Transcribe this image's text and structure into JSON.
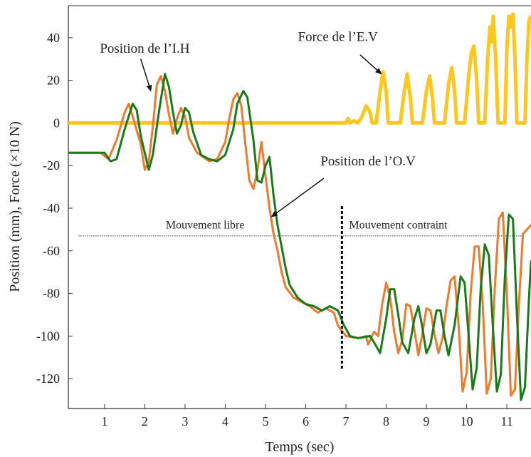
{
  "chart_data": {
    "type": "line",
    "xlabel": "Temps (sec)",
    "ylabel": "Position (mm), Force (×10 N)",
    "xlim": [
      0.1,
      11.6
    ],
    "ylim": [
      -134,
      55
    ],
    "xticks": [
      1,
      2,
      3,
      4,
      5,
      6,
      7,
      8,
      9,
      10,
      11
    ],
    "yticks": [
      40,
      20,
      0,
      -20,
      -40,
      -60,
      -80,
      -100,
      -120
    ],
    "grid": false,
    "series": [
      {
        "key": "ih",
        "color": "#f07a2c",
        "points": [
          [
            0.1,
            -14
          ],
          [
            0.9,
            -14
          ],
          [
            1.1,
            -17
          ],
          [
            1.3,
            -8
          ],
          [
            1.5,
            5
          ],
          [
            1.6,
            9
          ],
          [
            1.7,
            3
          ],
          [
            1.9,
            -10
          ],
          [
            2.0,
            -22
          ],
          [
            2.1,
            -18
          ],
          [
            2.2,
            -2
          ],
          [
            2.3,
            18
          ],
          [
            2.4,
            22
          ],
          [
            2.5,
            15
          ],
          [
            2.6,
            4
          ],
          [
            2.7,
            -5
          ],
          [
            2.8,
            2
          ],
          [
            2.9,
            7
          ],
          [
            3.0,
            3
          ],
          [
            3.1,
            -7
          ],
          [
            3.3,
            -14
          ],
          [
            3.6,
            -18
          ],
          [
            3.8,
            -17
          ],
          [
            4.0,
            -9
          ],
          [
            4.1,
            2
          ],
          [
            4.2,
            11
          ],
          [
            4.3,
            14
          ],
          [
            4.4,
            8
          ],
          [
            4.5,
            -10
          ],
          [
            4.6,
            -27
          ],
          [
            4.7,
            -31
          ],
          [
            4.8,
            -22
          ],
          [
            4.9,
            -9
          ],
          [
            5.0,
            -25
          ],
          [
            5.1,
            -40
          ],
          [
            5.2,
            -52
          ],
          [
            5.3,
            -60
          ],
          [
            5.4,
            -70
          ],
          [
            5.5,
            -77
          ],
          [
            5.7,
            -82
          ],
          [
            5.9,
            -84
          ],
          [
            6.1,
            -86
          ],
          [
            6.3,
            -89
          ],
          [
            6.5,
            -87
          ],
          [
            6.7,
            -89
          ],
          [
            6.8,
            -95
          ],
          [
            7.0,
            -100
          ],
          [
            7.3,
            -101
          ],
          [
            7.5,
            -100
          ],
          [
            7.55,
            -104
          ],
          [
            7.7,
            -98
          ],
          [
            7.8,
            -100
          ],
          [
            7.9,
            -85
          ],
          [
            8.0,
            -75
          ],
          [
            8.1,
            -82
          ],
          [
            8.2,
            -98
          ],
          [
            8.3,
            -108
          ],
          [
            8.4,
            -102
          ],
          [
            8.5,
            -85
          ],
          [
            8.6,
            -86
          ],
          [
            8.7,
            -97
          ],
          [
            8.8,
            -109
          ],
          [
            8.9,
            -99
          ],
          [
            9.0,
            -87
          ],
          [
            9.1,
            -88
          ],
          [
            9.2,
            -99
          ],
          [
            9.3,
            -108
          ],
          [
            9.4,
            -101
          ],
          [
            9.5,
            -86
          ],
          [
            9.6,
            -74
          ],
          [
            9.7,
            -72
          ],
          [
            9.8,
            -95
          ],
          [
            9.9,
            -126
          ],
          [
            10.0,
            -117
          ],
          [
            10.1,
            -80
          ],
          [
            10.2,
            -58
          ],
          [
            10.3,
            -58
          ],
          [
            10.4,
            -85
          ],
          [
            10.5,
            -127
          ],
          [
            10.6,
            -120
          ],
          [
            10.7,
            -78
          ],
          [
            10.8,
            -45
          ],
          [
            10.9,
            -42
          ],
          [
            11.0,
            -80
          ],
          [
            11.1,
            -128
          ],
          [
            11.2,
            -125
          ],
          [
            11.3,
            -85
          ],
          [
            11.4,
            -52
          ],
          [
            11.6,
            -48
          ]
        ]
      },
      {
        "key": "ov",
        "color": "#1a7a1a",
        "points": [
          [
            0.1,
            -14
          ],
          [
            0.9,
            -14
          ],
          [
            1.0,
            -14
          ],
          [
            1.15,
            -18
          ],
          [
            1.3,
            -17
          ],
          [
            1.5,
            -3
          ],
          [
            1.7,
            9
          ],
          [
            1.8,
            6
          ],
          [
            1.9,
            -6
          ],
          [
            2.1,
            -22
          ],
          [
            2.2,
            -15
          ],
          [
            2.35,
            5
          ],
          [
            2.5,
            23
          ],
          [
            2.6,
            17
          ],
          [
            2.7,
            5
          ],
          [
            2.8,
            -5
          ],
          [
            2.9,
            -1
          ],
          [
            3.0,
            7
          ],
          [
            3.1,
            5
          ],
          [
            3.2,
            -4
          ],
          [
            3.4,
            -15
          ],
          [
            3.6,
            -17
          ],
          [
            3.8,
            -18
          ],
          [
            4.0,
            -15
          ],
          [
            4.2,
            -3
          ],
          [
            4.3,
            9
          ],
          [
            4.45,
            15
          ],
          [
            4.55,
            12
          ],
          [
            4.7,
            -8
          ],
          [
            4.8,
            -27
          ],
          [
            4.9,
            -28
          ],
          [
            5.0,
            -20
          ],
          [
            5.1,
            -16
          ],
          [
            5.2,
            -34
          ],
          [
            5.3,
            -48
          ],
          [
            5.4,
            -58
          ],
          [
            5.5,
            -68
          ],
          [
            5.6,
            -76
          ],
          [
            5.8,
            -82
          ],
          [
            6.0,
            -85
          ],
          [
            6.2,
            -86
          ],
          [
            6.4,
            -88
          ],
          [
            6.6,
            -86
          ],
          [
            6.8,
            -88
          ],
          [
            6.95,
            -95
          ],
          [
            7.1,
            -100
          ],
          [
            7.3,
            -101
          ],
          [
            7.6,
            -100
          ],
          [
            7.7,
            -103
          ],
          [
            7.85,
            -108
          ],
          [
            8.0,
            -92
          ],
          [
            8.1,
            -78
          ],
          [
            8.2,
            -78
          ],
          [
            8.3,
            -90
          ],
          [
            8.4,
            -103
          ],
          [
            8.55,
            -108
          ],
          [
            8.7,
            -92
          ],
          [
            8.8,
            -86
          ],
          [
            8.9,
            -96
          ],
          [
            9.0,
            -108
          ],
          [
            9.1,
            -104
          ],
          [
            9.25,
            -88
          ],
          [
            9.35,
            -88
          ],
          [
            9.45,
            -100
          ],
          [
            9.55,
            -109
          ],
          [
            9.7,
            -95
          ],
          [
            9.85,
            -72
          ],
          [
            9.95,
            -75
          ],
          [
            10.05,
            -100
          ],
          [
            10.15,
            -125
          ],
          [
            10.25,
            -115
          ],
          [
            10.35,
            -78
          ],
          [
            10.45,
            -57
          ],
          [
            10.55,
            -62
          ],
          [
            10.65,
            -95
          ],
          [
            10.75,
            -126
          ],
          [
            10.85,
            -118
          ],
          [
            10.95,
            -72
          ],
          [
            11.05,
            -43
          ],
          [
            11.15,
            -45
          ],
          [
            11.25,
            -90
          ],
          [
            11.35,
            -130
          ],
          [
            11.45,
            -124
          ],
          [
            11.55,
            -82
          ],
          [
            11.6,
            -65
          ]
        ]
      },
      {
        "key": "ev",
        "color": "#ffc61e",
        "points": [
          [
            0.1,
            0
          ],
          [
            7.0,
            0
          ],
          [
            7.05,
            2
          ],
          [
            7.1,
            0
          ],
          [
            7.2,
            1
          ],
          [
            7.3,
            0
          ],
          [
            7.4,
            3
          ],
          [
            7.5,
            8
          ],
          [
            7.6,
            5
          ],
          [
            7.65,
            0
          ],
          [
            7.75,
            0
          ],
          [
            7.85,
            15
          ],
          [
            7.92,
            24
          ],
          [
            8.0,
            15
          ],
          [
            8.05,
            0
          ],
          [
            8.35,
            0
          ],
          [
            8.45,
            15
          ],
          [
            8.52,
            23
          ],
          [
            8.6,
            12
          ],
          [
            8.65,
            0
          ],
          [
            8.9,
            0
          ],
          [
            9.0,
            15
          ],
          [
            9.08,
            22
          ],
          [
            9.15,
            12
          ],
          [
            9.2,
            0
          ],
          [
            9.45,
            0
          ],
          [
            9.55,
            18
          ],
          [
            9.63,
            26
          ],
          [
            9.7,
            15
          ],
          [
            9.75,
            0
          ],
          [
            9.95,
            0
          ],
          [
            10.05,
            22
          ],
          [
            10.12,
            33
          ],
          [
            10.18,
            36
          ],
          [
            10.25,
            20
          ],
          [
            10.3,
            0
          ],
          [
            10.45,
            0
          ],
          [
            10.52,
            30
          ],
          [
            10.58,
            45
          ],
          [
            10.62,
            38
          ],
          [
            10.66,
            50
          ],
          [
            10.72,
            30
          ],
          [
            10.78,
            0
          ],
          [
            10.95,
            0
          ],
          [
            11.0,
            35
          ],
          [
            11.05,
            50
          ],
          [
            11.1,
            45
          ],
          [
            11.15,
            51
          ],
          [
            11.2,
            30
          ],
          [
            11.25,
            0
          ],
          [
            11.45,
            0
          ],
          [
            11.5,
            30
          ],
          [
            11.55,
            48
          ],
          [
            11.6,
            50
          ]
        ]
      }
    ],
    "annotations": [
      {
        "text": "Position de l’I.H",
        "x": 2.0,
        "y": 33
      },
      {
        "text": "Force de l’E.V",
        "x": 6.8,
        "y": 38.5
      },
      {
        "text": "Position de l’O.V",
        "x": 7.55,
        "y": -20
      },
      {
        "text": "Mouvement libre",
        "x": 3.5,
        "y": -49.5
      },
      {
        "text": "Mouvement contraint",
        "x": 8.3,
        "y": -49.5
      }
    ],
    "separator_x": 6.9,
    "region_line_y": -53
  }
}
